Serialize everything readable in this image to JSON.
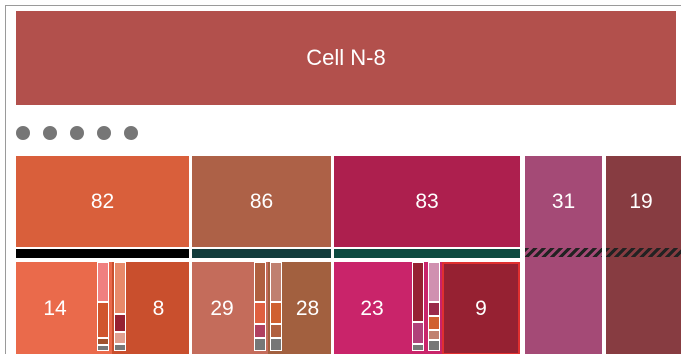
{
  "header": {
    "title": "Cell N-8",
    "color": "#b2504c"
  },
  "pagination": {
    "dots": 5,
    "dot_color": "#767676"
  },
  "tiles": [
    {
      "id": "a",
      "value": "82",
      "color": "#d95f3b"
    },
    {
      "id": "b",
      "value": "86",
      "color": "#ad6147"
    },
    {
      "id": "c",
      "value": "83",
      "color": "#ad1f4e"
    },
    {
      "id": "d",
      "value": "31",
      "color": "#a44a76"
    },
    {
      "id": "e",
      "value": "19",
      "color": "#873c41"
    }
  ],
  "separators": [
    {
      "color": "#000000"
    },
    {
      "color": "#123c3c"
    },
    {
      "color": "#0d4a40"
    }
  ],
  "subtiles": [
    {
      "value": "14",
      "color": "#ea6a4b"
    },
    {
      "value": "8",
      "color": "#c94f2d"
    },
    {
      "value": "29",
      "color": "#c46c5b"
    },
    {
      "value": "28",
      "color": "#a2603f"
    },
    {
      "value": "23",
      "color": "#c9246a"
    },
    {
      "value": "9",
      "color": "#962132"
    }
  ]
}
